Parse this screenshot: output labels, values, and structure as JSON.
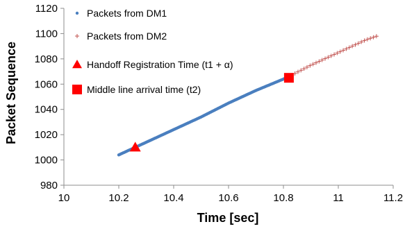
{
  "chart_data": {
    "type": "scatter",
    "title": "",
    "xlabel": "Time [sec]",
    "ylabel": "Packet Sequence",
    "xlim": [
      10,
      11.2
    ],
    "ylim": [
      980,
      1120
    ],
    "xticks": [
      "10",
      "10.2",
      "10.4",
      "10.6",
      "10.8",
      "11",
      "11.2"
    ],
    "yticks": [
      "980",
      "1000",
      "1020",
      "1040",
      "1060",
      "1080",
      "1100",
      "1120"
    ],
    "grid": false,
    "legend": "top-left",
    "series": [
      {
        "name": "Packets from DM1",
        "marker": "dot",
        "color": "#4a7fbf",
        "x": [
          10.2,
          10.3,
          10.4,
          10.5,
          10.6,
          10.7,
          10.8,
          10.82
        ],
        "y": [
          1004,
          1014,
          1024,
          1034,
          1045,
          1055,
          1064,
          1066
        ]
      },
      {
        "name": "Packets from DM2",
        "marker": "plus",
        "color": "#c0504d",
        "x": [
          10.82,
          10.9,
          10.95,
          11.0,
          11.05,
          11.1,
          11.14
        ],
        "y": [
          1066,
          1075,
          1080,
          1085,
          1090,
          1095,
          1098
        ]
      },
      {
        "name": "Handoff Registration Time (t1 + α)",
        "marker": "triangle",
        "color": "#ff0000",
        "x": [
          10.26
        ],
        "y": [
          1010
        ]
      },
      {
        "name": "Middle line arrival time (t2)",
        "marker": "square",
        "color": "#ff0000",
        "x": [
          10.82
        ],
        "y": [
          1065
        ]
      }
    ]
  }
}
